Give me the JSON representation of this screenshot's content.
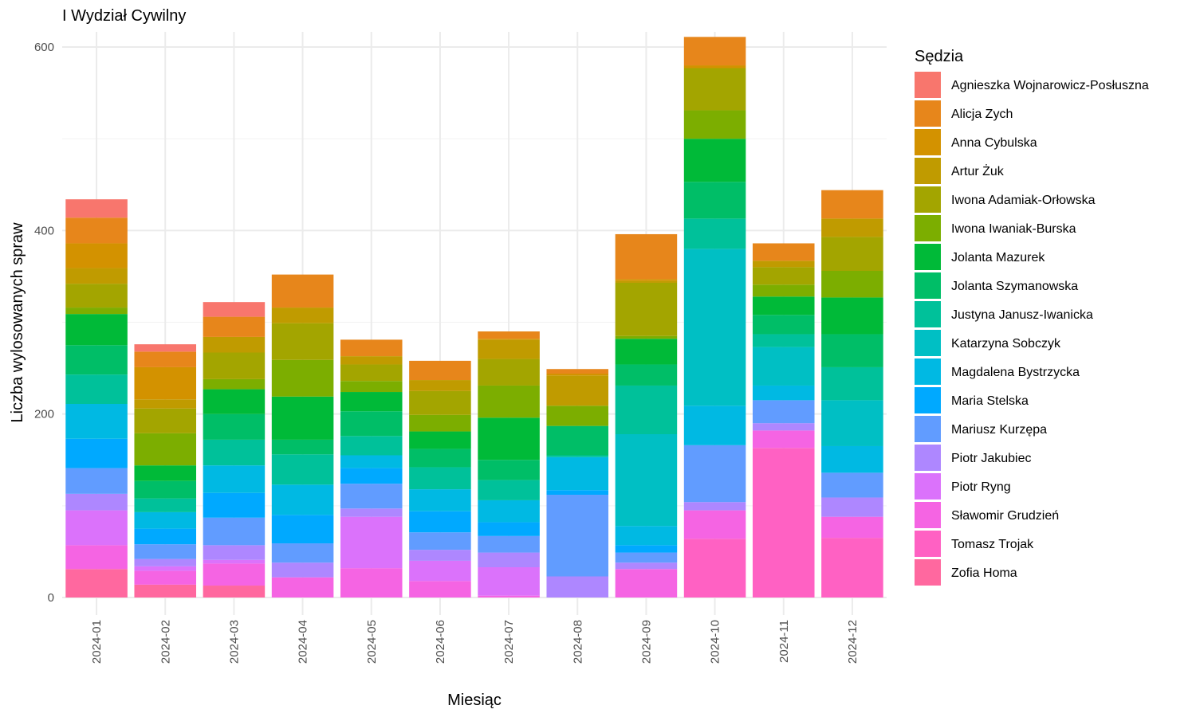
{
  "chart_data": {
    "type": "bar",
    "stacked": true,
    "title": "I Wydział Cywilny",
    "xlabel": "Miesiąc",
    "ylabel": "Liczba wylosowanych spraw",
    "ylim": [
      0,
      640
    ],
    "yticks": [
      0,
      200,
      400,
      600
    ],
    "grid": true,
    "legend_title": "Sędzia",
    "legend_position": "right",
    "categories": [
      "2024-01",
      "2024-02",
      "2024-03",
      "2024-04",
      "2024-05",
      "2024-06",
      "2024-07",
      "2024-08",
      "2024-09",
      "2024-10",
      "2024-11",
      "2024-12"
    ],
    "series": [
      {
        "name": "Agnieszka Wojnarowicz-Posłuszna",
        "color": "#F8766D",
        "values": [
          20,
          8,
          16,
          0,
          0,
          0,
          0,
          0,
          0,
          0,
          0,
          0
        ]
      },
      {
        "name": "Alicja Zych",
        "color": "#E7861B",
        "values": [
          28,
          17,
          22,
          36,
          18,
          21,
          8,
          5,
          49,
          31,
          19,
          31
        ]
      },
      {
        "name": "Anna Cybulska",
        "color": "#D39200",
        "values": [
          27,
          35,
          0,
          0,
          0,
          0,
          1,
          2,
          2,
          3,
          0,
          0
        ]
      },
      {
        "name": "Artur Żuk",
        "color": "#C09B00",
        "values": [
          17,
          10,
          17,
          17,
          9,
          12,
          21,
          33,
          2,
          0,
          7,
          20
        ]
      },
      {
        "name": "Iwona Adamiak-Orłowska",
        "color": "#A3A500",
        "values": [
          26,
          27,
          29,
          40,
          18,
          26,
          29,
          0,
          58,
          46,
          19,
          37
        ]
      },
      {
        "name": "Iwona Iwaniak-Burska",
        "color": "#7CAE00",
        "values": [
          7,
          35,
          11,
          40,
          12,
          18,
          35,
          22,
          3,
          31,
          13,
          29
        ]
      },
      {
        "name": "Jolanta Mazurek",
        "color": "#00BA38",
        "values": [
          34,
          17,
          27,
          47,
          21,
          19,
          46,
          0,
          28,
          47,
          20,
          40
        ]
      },
      {
        "name": "Jolanta Szymanowska",
        "color": "#00BE67",
        "values": [
          32,
          19,
          28,
          16,
          27,
          20,
          22,
          32,
          23,
          40,
          21,
          36
        ]
      },
      {
        "name": "Justyna Janusz-Iwanicka",
        "color": "#00C19A",
        "values": [
          32,
          15,
          28,
          33,
          21,
          24,
          22,
          2,
          53,
          33,
          14,
          36
        ]
      },
      {
        "name": "Katarzyna Sobczyk",
        "color": "#00BFC4",
        "values": [
          0,
          0,
          0,
          0,
          0,
          0,
          0,
          0,
          100,
          171,
          42,
          50
        ]
      },
      {
        "name": "Magdalena Bystrzycka",
        "color": "#00B9E3",
        "values": [
          38,
          18,
          30,
          33,
          14,
          24,
          24,
          36,
          21,
          43,
          16,
          29
        ]
      },
      {
        "name": "Maria Stelska",
        "color": "#00A9FF",
        "values": [
          32,
          17,
          27,
          31,
          17,
          23,
          15,
          5,
          8,
          0,
          0,
          0
        ]
      },
      {
        "name": "Mariusz Kurzępa",
        "color": "#619CFF",
        "values": [
          28,
          16,
          30,
          21,
          27,
          19,
          18,
          89,
          11,
          62,
          25,
          27
        ]
      },
      {
        "name": "Piotr Jakubiec",
        "color": "#AE87FF",
        "values": [
          18,
          8,
          16,
          16,
          9,
          12,
          16,
          23,
          7,
          9,
          8,
          21
        ]
      },
      {
        "name": "Piotr Ryng",
        "color": "#DB72FB",
        "values": [
          38,
          5,
          4,
          0,
          56,
          22,
          31,
          0,
          0,
          0,
          0,
          0
        ]
      },
      {
        "name": "Sławomir Grudzień",
        "color": "#F564E3",
        "values": [
          26,
          15,
          24,
          22,
          32,
          18,
          2,
          0,
          31,
          31,
          19,
          23
        ]
      },
      {
        "name": "Tomasz Trojak",
        "color": "#FF61C3",
        "values": [
          0,
          0,
          0,
          0,
          0,
          0,
          0,
          0,
          0,
          64,
          163,
          65
        ]
      },
      {
        "name": "Zofia Homa",
        "color": "#FF689F",
        "values": [
          31,
          14,
          13,
          0,
          0,
          0,
          0,
          0,
          0,
          0,
          0,
          0
        ]
      }
    ]
  }
}
